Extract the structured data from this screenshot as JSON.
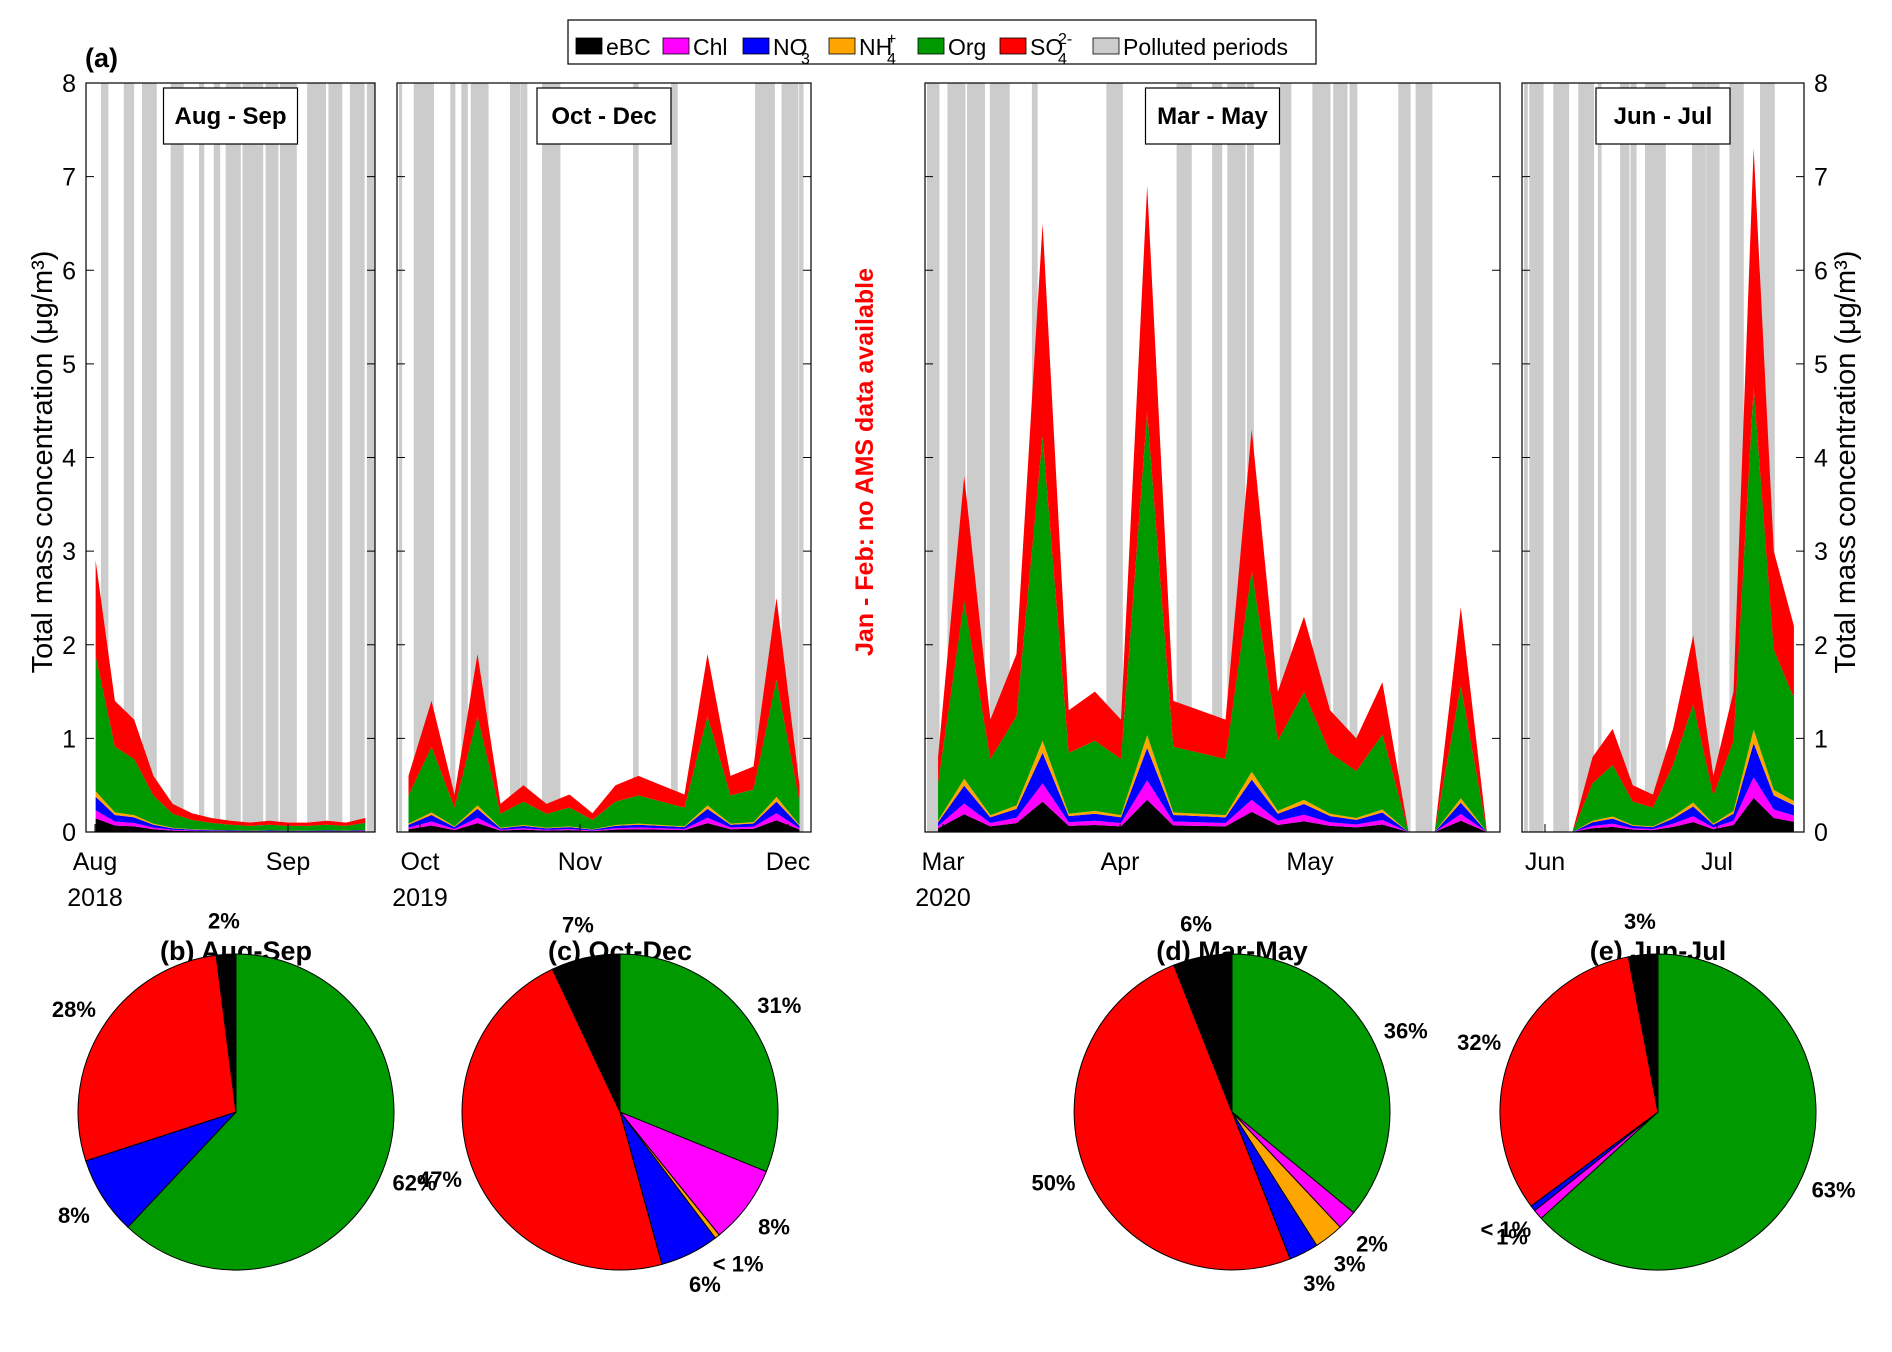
{
  "figure": {
    "panel_label": "(a)",
    "ylabel": "Total mass concentration (μg/m³)",
    "note": "Jan - Feb: no AMS data available"
  },
  "legend": [
    {
      "key": "eBC",
      "label": "eBC",
      "color": "#000000"
    },
    {
      "key": "Chl",
      "label": "Chl",
      "color": "#ff00ff"
    },
    {
      "key": "NO3",
      "label": "NO",
      "sub": "3",
      "sup": "-",
      "color": "#0000ff"
    },
    {
      "key": "NH4",
      "label": "NH",
      "sub": "4",
      "sup": "+",
      "color": "#ffa500"
    },
    {
      "key": "Org",
      "label": "Org",
      "color": "#009900"
    },
    {
      "key": "SO4",
      "label": "SO",
      "sub": "4",
      "sup": "2-",
      "color": "#ff0000"
    },
    {
      "key": "Polluted",
      "label": "Polluted periods",
      "color": "#cccccc"
    }
  ],
  "chart_data": [
    {
      "type": "area",
      "title": "Aug - Sep",
      "ylim": [
        0,
        8
      ],
      "yticks": [
        0,
        1,
        2,
        3,
        4,
        5,
        6,
        7,
        8
      ],
      "xticks": [
        {
          "label": "Aug",
          "year": "2018"
        },
        {
          "label": "Sep",
          "year": ""
        }
      ],
      "series_order": [
        "eBC",
        "Chl",
        "NO3",
        "NH4",
        "Org",
        "SO4"
      ],
      "total_mass_approx": [
        2.9,
        1.4,
        1.2,
        0.6,
        0.3,
        0.2,
        0.15,
        0.12,
        0.1,
        0.12,
        0.1,
        0.1,
        0.12,
        0.1,
        0.15
      ],
      "approx_peak": 2.9
    },
    {
      "type": "area",
      "title": "Oct - Dec",
      "ylim": [
        0,
        8
      ],
      "yticks": [
        0,
        1,
        2,
        3,
        4,
        5,
        6,
        7,
        8
      ],
      "xticks": [
        {
          "label": "Oct",
          "year": "2019"
        },
        {
          "label": "Nov",
          "year": ""
        },
        {
          "label": "Dec",
          "year": ""
        }
      ],
      "series_order": [
        "eBC",
        "Chl",
        "NO3",
        "NH4",
        "Org",
        "SO4"
      ],
      "total_mass_approx": [
        0.6,
        1.4,
        0.4,
        1.9,
        0.3,
        0.5,
        0.3,
        0.4,
        0.2,
        0.5,
        0.6,
        0.5,
        0.4,
        1.9,
        0.6,
        0.7,
        2.5,
        0.5
      ],
      "approx_peak": 2.5
    },
    {
      "type": "area",
      "title": "Mar - May",
      "ylim": [
        0,
        8
      ],
      "yticks": [
        0,
        1,
        2,
        3,
        4,
        5,
        6,
        7,
        8
      ],
      "xticks": [
        {
          "label": "Mar",
          "year": "2020"
        },
        {
          "label": "Apr",
          "year": ""
        },
        {
          "label": "May",
          "year": ""
        }
      ],
      "series_order": [
        "eBC",
        "Chl",
        "NO3",
        "NH4",
        "Org",
        "SO4"
      ],
      "total_mass_approx": [
        0.8,
        3.8,
        1.2,
        1.9,
        6.5,
        1.3,
        1.5,
        1.2,
        6.9,
        1.4,
        1.3,
        1.2,
        4.3,
        1.5,
        2.3,
        1.3,
        1.0,
        1.6,
        0.0,
        0.0,
        2.4,
        0.0
      ],
      "approx_peak": 6.9
    },
    {
      "type": "area",
      "title": "Jun - Jul",
      "ylim": [
        0,
        8
      ],
      "yticks": [
        0,
        1,
        2,
        3,
        4,
        5,
        6,
        7,
        8
      ],
      "xticks": [
        {
          "label": "Jun",
          "year": ""
        },
        {
          "label": "Jul",
          "year": ""
        }
      ],
      "series_order": [
        "eBC",
        "Chl",
        "NO3",
        "NH4",
        "Org",
        "SO4"
      ],
      "total_mass_approx": [
        0.0,
        0.0,
        0.0,
        0.8,
        1.1,
        0.5,
        0.4,
        1.1,
        2.1,
        0.6,
        1.5,
        7.3,
        3.0,
        2.2
      ],
      "approx_peak": 7.3
    },
    {
      "type": "pie",
      "title": "(b) Aug-Sep",
      "slices": [
        {
          "key": "Org",
          "value": 62,
          "label": "62%"
        },
        {
          "key": "NO3",
          "value": 8,
          "label": "8%"
        },
        {
          "key": "SO4",
          "value": 28,
          "label": "28%"
        },
        {
          "key": "eBC",
          "value": 2,
          "label": "2%"
        }
      ]
    },
    {
      "type": "pie",
      "title": "(c) Oct-Dec",
      "slices": [
        {
          "key": "Org",
          "value": 31,
          "label": "31%"
        },
        {
          "key": "Chl",
          "value": 8,
          "label": "8%"
        },
        {
          "key": "NH4",
          "value": 0.5,
          "label": "< 1%"
        },
        {
          "key": "NO3",
          "value": 6,
          "label": "6%"
        },
        {
          "key": "SO4",
          "value": 47,
          "label": "47%"
        },
        {
          "key": "eBC",
          "value": 7,
          "label": "7%"
        }
      ]
    },
    {
      "type": "pie",
      "title": "(d) Mar-May",
      "slices": [
        {
          "key": "Org",
          "value": 36,
          "label": "36%"
        },
        {
          "key": "Chl",
          "value": 2,
          "label": "2%"
        },
        {
          "key": "NH4",
          "value": 3,
          "label": "3%"
        },
        {
          "key": "NO3",
          "value": 3,
          "label": "3%"
        },
        {
          "key": "SO4",
          "value": 50,
          "label": "50%"
        },
        {
          "key": "eBC",
          "value": 6,
          "label": "6%"
        }
      ]
    },
    {
      "type": "pie",
      "title": "(e) Jun-Jul",
      "slices": [
        {
          "key": "Org",
          "value": 63,
          "label": "63%"
        },
        {
          "key": "Chl",
          "value": 1,
          "label": "1%"
        },
        {
          "key": "NO3",
          "value": 0.6,
          "label": "< 1%"
        },
        {
          "key": "SO4",
          "value": 32,
          "label": "32%"
        },
        {
          "key": "eBC",
          "value": 3,
          "label": "3%"
        }
      ]
    }
  ]
}
